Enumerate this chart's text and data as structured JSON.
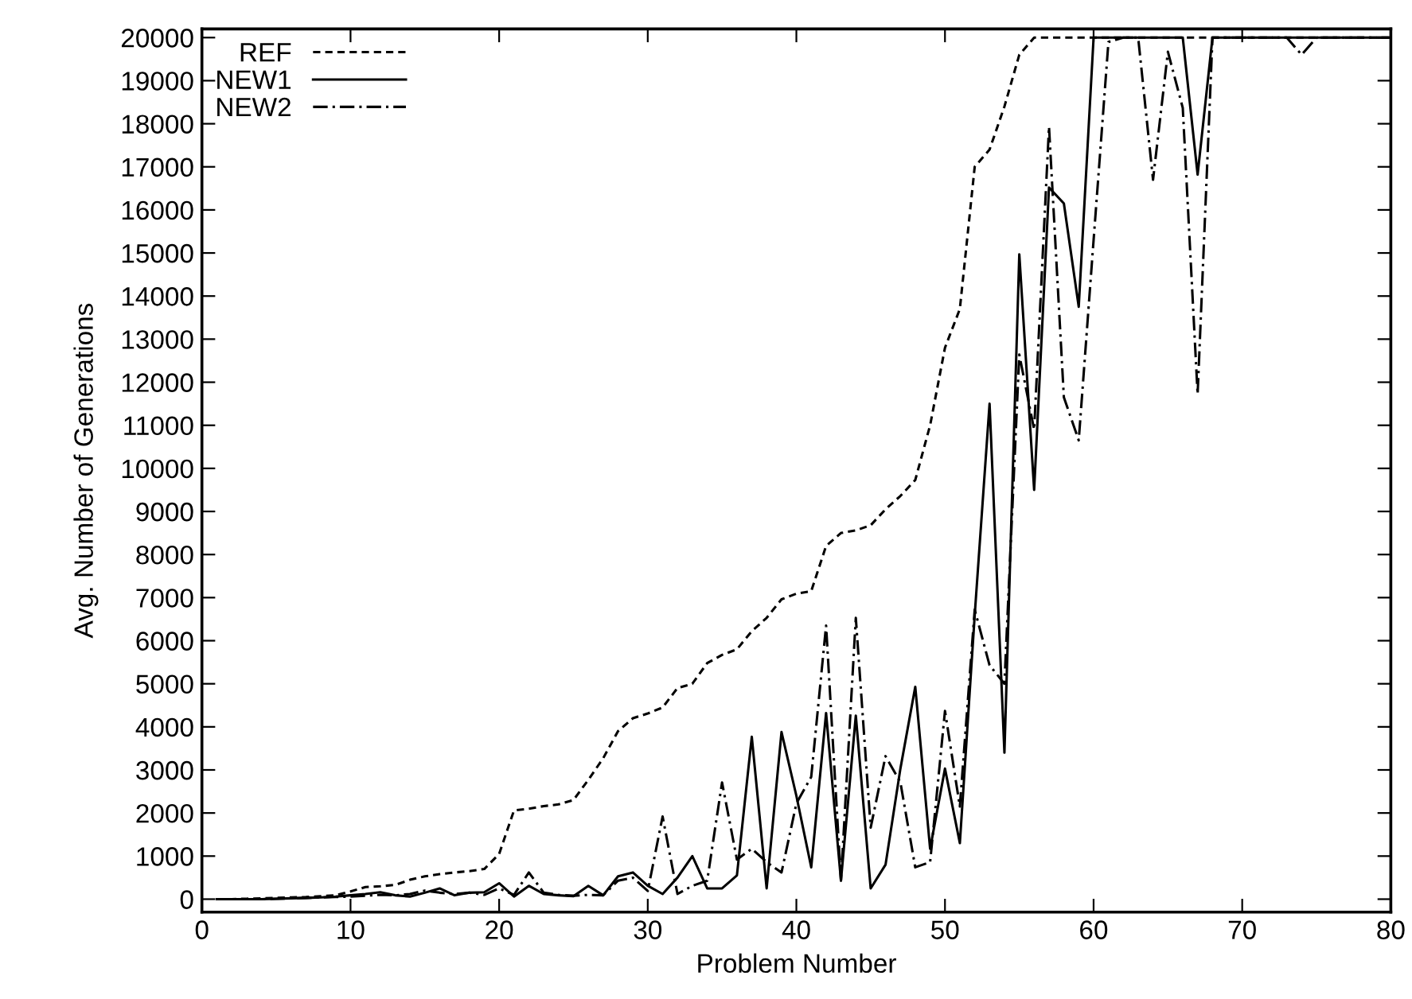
{
  "chart_data": {
    "type": "line",
    "xlabel": "Problem Number",
    "ylabel": "Avg. Number of Generations",
    "x": [
      1,
      2,
      3,
      4,
      5,
      6,
      7,
      8,
      9,
      10,
      11,
      12,
      13,
      14,
      15,
      16,
      17,
      18,
      19,
      20,
      21,
      22,
      23,
      24,
      25,
      26,
      27,
      28,
      29,
      30,
      31,
      32,
      33,
      34,
      35,
      36,
      37,
      38,
      39,
      40,
      41,
      42,
      43,
      44,
      45,
      46,
      47,
      48,
      49,
      50,
      51,
      52,
      53,
      54,
      55,
      56,
      57,
      58,
      59,
      60,
      61,
      62,
      63,
      64,
      65,
      66,
      67,
      68,
      69,
      70,
      71,
      72,
      73,
      74,
      75,
      76,
      77,
      78,
      79,
      80
    ],
    "series": [
      {
        "name": "REF",
        "color": "#000000",
        "line_style": "dashed",
        "values": [
          0,
          0,
          10,
          20,
          30,
          40,
          50,
          70,
          90,
          180,
          280,
          300,
          330,
          450,
          530,
          580,
          620,
          650,
          700,
          1050,
          2060,
          2100,
          2160,
          2200,
          2300,
          2770,
          3270,
          3900,
          4200,
          4310,
          4450,
          4900,
          5000,
          5480,
          5670,
          5800,
          6220,
          6530,
          6960,
          7090,
          7150,
          8200,
          8500,
          8560,
          8680,
          9050,
          9360,
          9730,
          11000,
          12800,
          13700,
          17000,
          17400,
          18400,
          19600,
          20000,
          20000,
          20000,
          20000,
          20000,
          20000,
          20000,
          20000,
          20000,
          20000,
          20000,
          20000,
          20000,
          20000,
          20000,
          20000,
          20000,
          20000,
          20000,
          20000,
          20000,
          20000,
          20000,
          20000,
          20000
        ]
      },
      {
        "name": "NEW1",
        "color": "#000000",
        "line_style": "solid",
        "values": [
          0,
          0,
          0,
          0,
          10,
          20,
          30,
          40,
          60,
          90,
          120,
          160,
          90,
          60,
          150,
          250,
          90,
          150,
          160,
          370,
          60,
          310,
          120,
          90,
          70,
          310,
          90,
          530,
          620,
          310,
          120,
          500,
          1000,
          250,
          250,
          550,
          3770,
          250,
          3880,
          2400,
          740,
          4320,
          430,
          4260,
          250,
          800,
          3030,
          4930,
          1170,
          3030,
          1300,
          6590,
          11500,
          3400,
          14970,
          9500,
          16520,
          16150,
          13750,
          20000,
          20000,
          20000,
          20000,
          20000,
          20000,
          20000,
          16820,
          20000,
          20000,
          20000,
          20000,
          20000,
          20000,
          20000,
          20000,
          20000,
          20000,
          20000,
          20000,
          20000
        ]
      },
      {
        "name": "NEW2",
        "color": "#000000",
        "line_style": "dashdot",
        "values": [
          0,
          0,
          0,
          0,
          10,
          20,
          30,
          40,
          50,
          60,
          80,
          100,
          90,
          120,
          200,
          150,
          120,
          150,
          100,
          250,
          100,
          620,
          150,
          100,
          80,
          100,
          90,
          430,
          500,
          190,
          1920,
          120,
          310,
          430,
          2710,
          920,
          1170,
          860,
          620,
          2220,
          2840,
          6350,
          430,
          6530,
          1660,
          3320,
          2710,
          740,
          860,
          4370,
          2150,
          6720,
          5430,
          5000,
          12640,
          10900,
          17930,
          11650,
          10650,
          15300,
          19900,
          20000,
          20000,
          16700,
          19670,
          18370,
          11720,
          20000,
          20000,
          20000,
          20000,
          20000,
          20000,
          19600,
          20000,
          20000,
          20000,
          20000,
          20000,
          20000
        ]
      }
    ],
    "xlim": [
      0,
      80
    ],
    "xticks": [
      0,
      10,
      20,
      30,
      40,
      50,
      60,
      70,
      80
    ],
    "ylim": [
      -300,
      20200
    ],
    "yticks": [
      0,
      1000,
      2000,
      3000,
      4000,
      5000,
      6000,
      7000,
      8000,
      9000,
      10000,
      11000,
      12000,
      13000,
      14000,
      15000,
      16000,
      17000,
      18000,
      19000,
      20000
    ],
    "legend": "top left",
    "grid": false
  }
}
